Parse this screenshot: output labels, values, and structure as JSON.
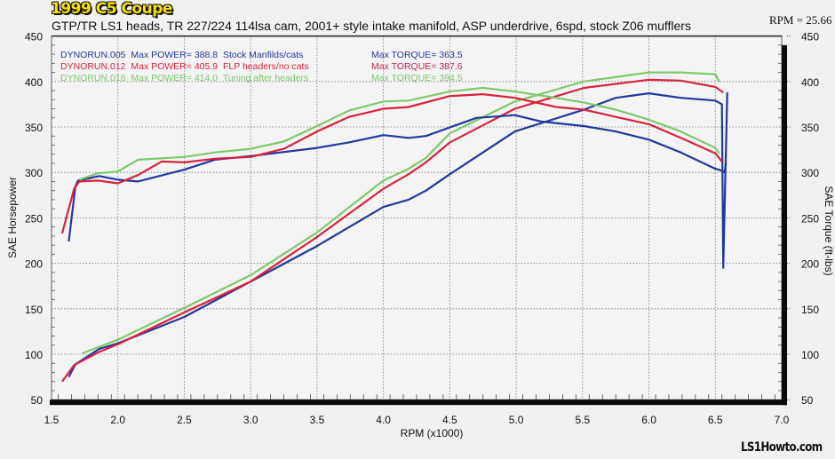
{
  "chart_data": {
    "type": "line",
    "title": "1999 C5 Coupe",
    "subtitle": "GTP/TR LS1 heads, TR 227/224 114lsa cam, 2001+ style intake manifold, ASP underdrive, 6spd, stock Z06 mufflers",
    "rpm_readout": "RPM = 25.66",
    "watermark": "LS1Howto.com",
    "xlabel": "RPM (x1000)",
    "ylabel": "SAE Horsepower",
    "ylabel_right": "SAE Torque (ft-lbs)",
    "xlim": [
      1.5,
      7.0
    ],
    "ylim": [
      50,
      450
    ],
    "ylim_right": [
      50,
      450
    ],
    "xticks": [
      "1.5",
      "2.0",
      "2.5",
      "3.0",
      "3.5",
      "4.0",
      "4.5",
      "5.0",
      "5.5",
      "6.0",
      "6.5",
      "7.0"
    ],
    "yticks": [
      "450",
      "400",
      "350",
      "300",
      "250",
      "200",
      "150",
      "100",
      "50"
    ],
    "grid": true,
    "legend": [
      {
        "run": "DYNORUN.005",
        "power": "Max POWER= 388.8",
        "note": "Stock Manfilds/cats",
        "torque": "Max TORQUE= 363.5",
        "color": "#22399a"
      },
      {
        "run": "DYNORUN.012",
        "power": "Max POWER= 405.9",
        "note": "FLP headers/no cats",
        "torque": "Max TORQUE= 387.6",
        "color": "#d8233f"
      },
      {
        "run": "DYNORUN.018",
        "power": "Max POWER= 414.0",
        "note": "Tuning after headers",
        "torque": "Max TORQUE= 394.5",
        "color": "#7fc86e"
      }
    ],
    "series": [
      {
        "name": "DYNORUN.005 Horsepower",
        "color": "#22399a",
        "points": [
          [
            1.63,
            75
          ],
          [
            1.68,
            89
          ],
          [
            1.86,
            106
          ],
          [
            2.0,
            112
          ],
          [
            2.5,
            141
          ],
          [
            3.0,
            180
          ],
          [
            3.5,
            219
          ],
          [
            4.0,
            262
          ],
          [
            4.19,
            270
          ],
          [
            4.32,
            280
          ],
          [
            4.5,
            298
          ],
          [
            4.99,
            345
          ],
          [
            5.51,
            369
          ],
          [
            5.75,
            382
          ],
          [
            6.0,
            387
          ],
          [
            6.24,
            382
          ],
          [
            6.5,
            379
          ],
          [
            6.55,
            375
          ],
          [
            6.56,
            195
          ],
          [
            6.59,
            388
          ]
        ]
      },
      {
        "name": "DYNORUN.012 Horsepower",
        "color": "#d8233f",
        "points": [
          [
            1.58,
            70
          ],
          [
            1.67,
            88
          ],
          [
            1.85,
            102
          ],
          [
            2.0,
            111
          ],
          [
            2.5,
            146
          ],
          [
            3.0,
            180
          ],
          [
            3.5,
            229
          ],
          [
            4.0,
            282
          ],
          [
            4.19,
            298
          ],
          [
            4.32,
            311
          ],
          [
            4.5,
            333
          ],
          [
            4.99,
            370
          ],
          [
            5.51,
            393
          ],
          [
            6.0,
            402
          ],
          [
            6.24,
            401
          ],
          [
            6.5,
            394
          ],
          [
            6.56,
            388
          ]
        ]
      },
      {
        "name": "DYNORUN.018 Horsepower",
        "color": "#7fc86e",
        "points": [
          [
            1.73,
            101
          ],
          [
            2.0,
            116
          ],
          [
            2.5,
            151
          ],
          [
            3.0,
            187
          ],
          [
            3.5,
            234
          ],
          [
            4.0,
            291
          ],
          [
            4.19,
            304
          ],
          [
            4.32,
            316
          ],
          [
            4.5,
            343
          ],
          [
            4.99,
            378
          ],
          [
            5.51,
            400
          ],
          [
            6.0,
            410
          ],
          [
            6.24,
            410
          ],
          [
            6.5,
            408
          ],
          [
            6.53,
            400
          ]
        ]
      },
      {
        "name": "DYNORUN.005 Torque",
        "color": "#22399a",
        "points": [
          [
            1.63,
            224
          ],
          [
            1.68,
            285
          ],
          [
            1.7,
            291
          ],
          [
            1.86,
            296
          ],
          [
            2.0,
            292
          ],
          [
            2.15,
            290
          ],
          [
            2.5,
            303
          ],
          [
            2.73,
            314
          ],
          [
            3.0,
            318
          ],
          [
            3.5,
            327
          ],
          [
            3.74,
            333
          ],
          [
            4.0,
            341
          ],
          [
            4.19,
            338
          ],
          [
            4.32,
            340
          ],
          [
            4.7,
            360
          ],
          [
            4.99,
            363
          ],
          [
            5.19,
            356
          ],
          [
            5.51,
            351
          ],
          [
            5.75,
            345
          ],
          [
            6.0,
            336
          ],
          [
            6.24,
            322
          ],
          [
            6.5,
            304
          ],
          [
            6.55,
            302
          ],
          [
            6.57,
            300
          ],
          [
            6.58,
            310
          ]
        ]
      },
      {
        "name": "DYNORUN.012 Torque",
        "color": "#d8233f",
        "points": [
          [
            1.58,
            233
          ],
          [
            1.67,
            282
          ],
          [
            1.71,
            290
          ],
          [
            1.85,
            291
          ],
          [
            2.0,
            288
          ],
          [
            2.15,
            297
          ],
          [
            2.33,
            312
          ],
          [
            2.5,
            311
          ],
          [
            2.73,
            315
          ],
          [
            3.0,
            317
          ],
          [
            3.25,
            326
          ],
          [
            3.5,
            345
          ],
          [
            3.74,
            361
          ],
          [
            4.0,
            370
          ],
          [
            4.19,
            372
          ],
          [
            4.5,
            384
          ],
          [
            4.75,
            386
          ],
          [
            4.99,
            382
          ],
          [
            5.3,
            372
          ],
          [
            5.51,
            369
          ],
          [
            5.75,
            361
          ],
          [
            6.0,
            353
          ],
          [
            6.24,
            338
          ],
          [
            6.5,
            321
          ],
          [
            6.55,
            312
          ]
        ]
      },
      {
        "name": "DYNORUN.018 Torque",
        "color": "#7fc86e",
        "points": [
          [
            1.71,
            292
          ],
          [
            1.85,
            299
          ],
          [
            2.0,
            301
          ],
          [
            2.15,
            314
          ],
          [
            2.5,
            317
          ],
          [
            2.73,
            322
          ],
          [
            3.0,
            326
          ],
          [
            3.25,
            334
          ],
          [
            3.5,
            351
          ],
          [
            3.74,
            368
          ],
          [
            4.0,
            378
          ],
          [
            4.19,
            379
          ],
          [
            4.5,
            389
          ],
          [
            4.75,
            393
          ],
          [
            4.99,
            389
          ],
          [
            5.3,
            382
          ],
          [
            5.51,
            377
          ],
          [
            5.75,
            369
          ],
          [
            6.0,
            358
          ],
          [
            6.24,
            345
          ],
          [
            6.5,
            327
          ],
          [
            6.53,
            321
          ]
        ]
      }
    ]
  }
}
